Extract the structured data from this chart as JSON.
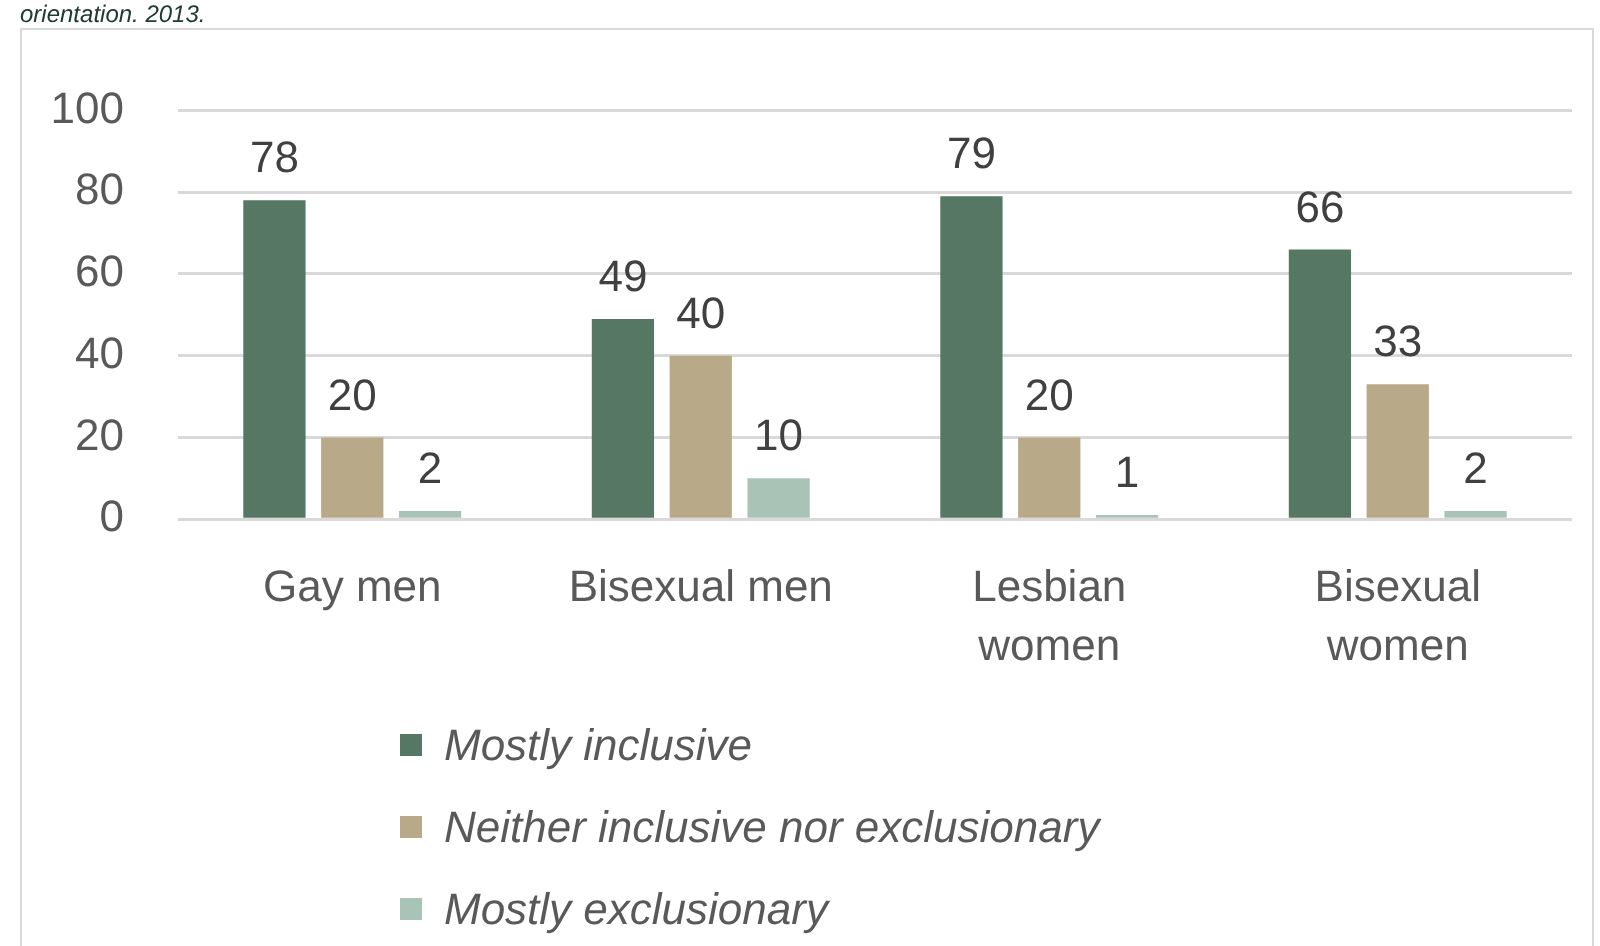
{
  "chart_data": {
    "type": "bar",
    "annotations": [
      "orientation. 2013."
    ],
    "categories": [
      "Gay men",
      "Bisexual men",
      "Lesbian women",
      "Bisexual women"
    ],
    "series": [
      {
        "name": "Mostly inclusive",
        "color": "#557763",
        "values": [
          78,
          49,
          79,
          66
        ]
      },
      {
        "name": "Neither inclusive nor exclusionary",
        "color": "#b8aa88",
        "values": [
          20,
          40,
          20,
          33
        ]
      },
      {
        "name": "Mostly exclusionary",
        "color": "#a9c4b6",
        "values": [
          2,
          10,
          1,
          2
        ]
      }
    ],
    "ylim": [
      0,
      100
    ],
    "yticks": [
      0,
      20,
      40,
      60,
      80,
      100
    ],
    "grid": "y",
    "legend": "bottom",
    "data_labels": true
  }
}
